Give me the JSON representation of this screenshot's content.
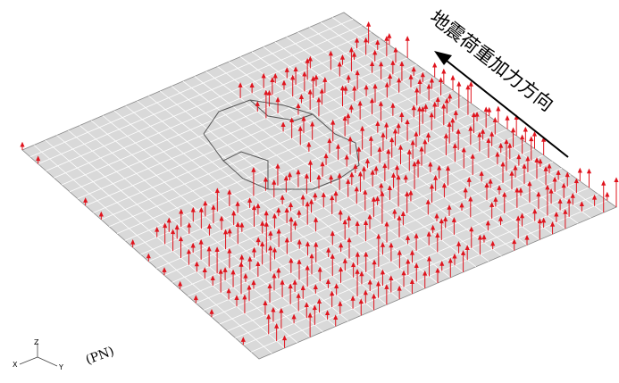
{
  "annotation": "地震荷重加力方向",
  "view_label": "(PN)",
  "axes": {
    "z": "Z",
    "x": "X",
    "y": "Y"
  }
}
